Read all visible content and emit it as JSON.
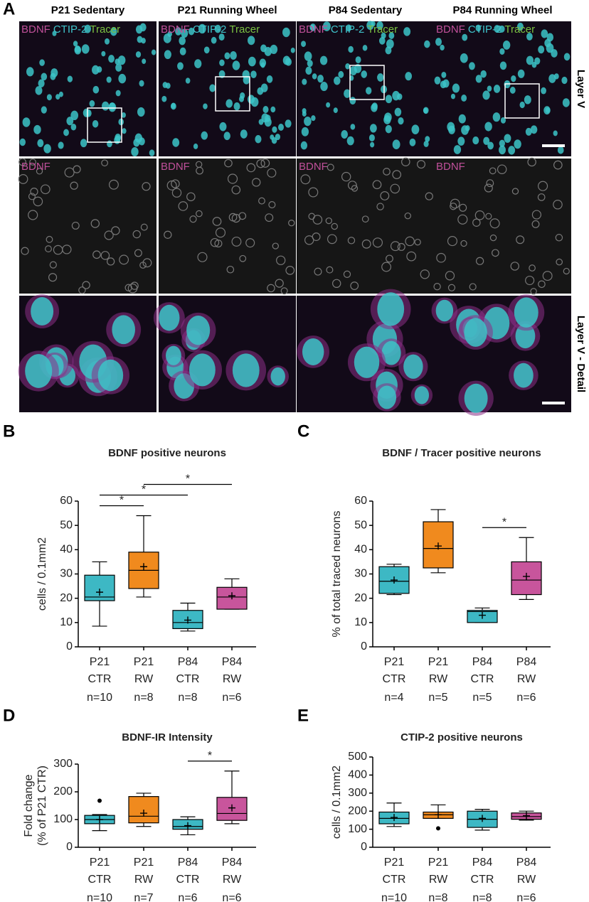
{
  "figure_a": {
    "panel": "A",
    "columns": [
      "P21 Sedentary",
      "P21 Running Wheel",
      "P84 Sedentary",
      "P84 Running Wheel"
    ],
    "channels": [
      {
        "name": "BDNF",
        "color": "#c0509a"
      },
      {
        "name": "CTIP-2",
        "color": "#3fc4cc"
      },
      {
        "name": "Tracer",
        "color": "#7bc142"
      }
    ],
    "row_labels": [
      "Layer V",
      "Layer V - Detail"
    ]
  },
  "chart_data": [
    {
      "type": "box",
      "panel": "B",
      "title": "BDNF positive neurons",
      "y_label": [
        "cells / 0.1mm2"
      ],
      "groups": [
        "P21",
        "P21",
        "P84",
        "P84"
      ],
      "conditions": [
        "CTR",
        "RW",
        "CTR",
        "RW"
      ],
      "n_labels": [
        "n=10",
        "n=8",
        "n=8",
        "n=6"
      ],
      "colors": [
        "#3db8c4",
        "#f08a1e",
        "#c8559c"
      ],
      "box_colors": [
        "#3db8c4",
        "#f08a1e",
        "#3db8c4",
        "#c8559c"
      ],
      "ylim": [
        0,
        60
      ],
      "yticks": [
        0,
        10,
        20,
        30,
        40,
        50,
        60
      ],
      "boxes": [
        {
          "min": 8.5,
          "q1": 19,
          "median": 20.5,
          "q3": 29.5,
          "max": 35,
          "mean": 22.5,
          "outliers": []
        },
        {
          "min": 20.5,
          "q1": 24,
          "median": 31.5,
          "q3": 39,
          "max": 54,
          "mean": 33,
          "outliers": []
        },
        {
          "min": 6.5,
          "q1": 7.5,
          "median": 10,
          "q3": 15,
          "max": 18,
          "mean": 11,
          "outliers": []
        },
        {
          "min": 15.5,
          "q1": 15.5,
          "median": 20.5,
          "q3": 24.5,
          "max": 28,
          "mean": 21,
          "outliers": []
        }
      ],
      "comparisons": [
        {
          "groups": [
            0,
            1
          ],
          "label": "*"
        },
        {
          "groups": [
            0,
            2
          ],
          "label": "*"
        },
        {
          "groups": [
            1,
            3
          ],
          "label": "*"
        }
      ]
    },
    {
      "type": "box",
      "panel": "C",
      "title": "BDNF / Tracer positive neurons",
      "y_label": [
        "% of total traced neurons"
      ],
      "groups": [
        "P21",
        "P21",
        "P84",
        "P84"
      ],
      "conditions": [
        "CTR",
        "RW",
        "CTR",
        "RW"
      ],
      "n_labels": [
        "n=4",
        "n=5",
        "n=5",
        "n=6"
      ],
      "box_colors": [
        "#3db8c4",
        "#f08a1e",
        "#3db8c4",
        "#c8559c"
      ],
      "ylim": [
        0,
        60
      ],
      "yticks": [
        0,
        10,
        20,
        30,
        40,
        50,
        60
      ],
      "boxes": [
        {
          "min": 21.5,
          "q1": 22,
          "median": 27,
          "q3": 33,
          "max": 34,
          "mean": 27.5,
          "outliers": []
        },
        {
          "min": 30.5,
          "q1": 32.5,
          "median": 40.5,
          "q3": 51.5,
          "max": 56.5,
          "mean": 41.5,
          "outliers": []
        },
        {
          "min": 10,
          "q1": 10,
          "median": 14.5,
          "q3": 15,
          "max": 16,
          "mean": 13,
          "outliers": []
        },
        {
          "min": 19.5,
          "q1": 21.5,
          "median": 27.5,
          "q3": 35,
          "max": 45,
          "mean": 29,
          "outliers": []
        }
      ],
      "comparisons": [
        {
          "groups": [
            2,
            3
          ],
          "label": "*"
        }
      ]
    },
    {
      "type": "box",
      "panel": "D",
      "title": "BDNF-IR Intensity",
      "y_label": [
        "Fold change",
        "(% of P21 CTR)"
      ],
      "groups": [
        "P21",
        "P21",
        "P84",
        "P84"
      ],
      "conditions": [
        "CTR",
        "RW",
        "CTR",
        "RW"
      ],
      "n_labels": [
        "n=10",
        "n=7",
        "n=6",
        "n=6"
      ],
      "box_colors": [
        "#3db8c4",
        "#f08a1e",
        "#3db8c4",
        "#c8559c"
      ],
      "ylim": [
        0,
        300
      ],
      "yticks": [
        0,
        100,
        200,
        300
      ],
      "boxes": [
        {
          "min": 60,
          "q1": 85,
          "median": 100,
          "q3": 115,
          "max": 118,
          "mean": 100,
          "outliers": [
            168
          ]
        },
        {
          "min": 75,
          "q1": 88,
          "median": 112,
          "q3": 183,
          "max": 195,
          "mean": 123,
          "outliers": []
        },
        {
          "min": 45,
          "q1": 65,
          "median": 75,
          "q3": 100,
          "max": 110,
          "mean": 78,
          "outliers": []
        },
        {
          "min": 85,
          "q1": 97,
          "median": 122,
          "q3": 180,
          "max": 275,
          "mean": 142,
          "outliers": []
        }
      ],
      "comparisons": [
        {
          "groups": [
            2,
            3
          ],
          "label": "*"
        }
      ]
    },
    {
      "type": "box",
      "panel": "E",
      "title": "CTIP-2 positive neurons",
      "y_label": [
        "cells / 0.1mm2"
      ],
      "groups": [
        "P21",
        "P21",
        "P84",
        "P84"
      ],
      "conditions": [
        "CTR",
        "RW",
        "CTR",
        "RW"
      ],
      "n_labels": [
        "n=10",
        "n=8",
        "n=8",
        "n=6"
      ],
      "box_colors": [
        "#3db8c4",
        "#f08a1e",
        "#3db8c4",
        "#c8559c"
      ],
      "ylim": [
        0,
        500
      ],
      "yticks": [
        0,
        100,
        200,
        300,
        400,
        500
      ],
      "boxes": [
        {
          "min": 115,
          "q1": 130,
          "median": 160,
          "q3": 195,
          "max": 245,
          "mean": 165,
          "outliers": []
        },
        {
          "min": 160,
          "q1": 160,
          "median": 180,
          "q3": 195,
          "max": 235,
          "mean": 180,
          "outliers": [
            105
          ]
        },
        {
          "min": 95,
          "q1": 110,
          "median": 155,
          "q3": 200,
          "max": 210,
          "mean": 160,
          "outliers": []
        },
        {
          "min": 150,
          "q1": 155,
          "median": 170,
          "q3": 190,
          "max": 200,
          "mean": 175,
          "outliers": []
        }
      ],
      "comparisons": []
    }
  ]
}
